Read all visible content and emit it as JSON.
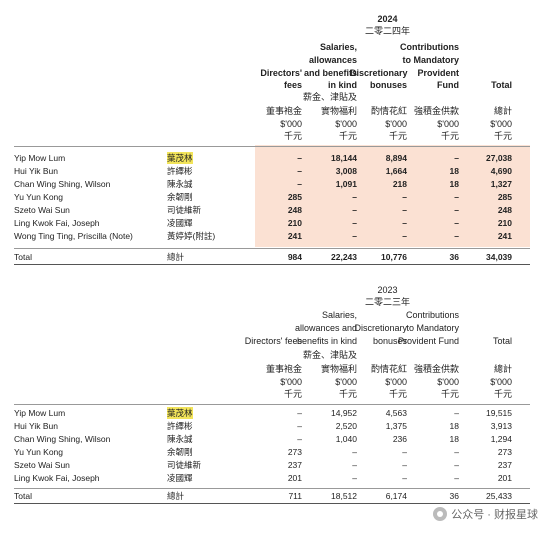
{
  "table2024": {
    "year": "2024",
    "year_zh": "二零二四年",
    "headers": [
      {
        "en": [
          "Directors'",
          "fees"
        ],
        "zh": "董事袍金"
      },
      {
        "en": [
          "Salaries,",
          "allowances",
          "and benefits",
          "in kind"
        ],
        "zh": [
          "薪金、津貼及",
          "實物福利"
        ]
      },
      {
        "en": [
          "Discretionary",
          "bonuses"
        ],
        "zh": "酌情花紅"
      },
      {
        "en": [
          "Contributions",
          "to Mandatory",
          "Provident",
          "Fund"
        ],
        "zh": "強積金供款"
      },
      {
        "en": [
          "Total"
        ],
        "zh": "總計"
      }
    ],
    "unit": "$'000",
    "unit_zh": "千元",
    "rows": [
      {
        "en": "Yip Mow Lum",
        "zh": "葉茂林",
        "highlight": true,
        "v": [
          "–",
          "18,144",
          "8,894",
          "–",
          "27,038"
        ]
      },
      {
        "en": "Hui Yik Bun",
        "zh": "許繹彬",
        "v": [
          "–",
          "3,008",
          "1,664",
          "18",
          "4,690"
        ]
      },
      {
        "en": "Chan Wing Shing, Wilson",
        "zh": "陳永誠",
        "v": [
          "–",
          "1,091",
          "218",
          "18",
          "1,327"
        ]
      },
      {
        "en": "Yu Yun Kong",
        "zh": "余韌剛",
        "v": [
          "285",
          "–",
          "–",
          "–",
          "285"
        ]
      },
      {
        "en": "Szeto Wai Sun",
        "zh": "司徒維新",
        "v": [
          "248",
          "–",
          "–",
          "–",
          "248"
        ]
      },
      {
        "en": "Ling Kwok Fai, Joseph",
        "zh": "凌國輝",
        "v": [
          "210",
          "–",
          "–",
          "–",
          "210"
        ]
      },
      {
        "en": "Wong Ting Ting, Priscilla (Note)",
        "zh": "黃婷婷(附註)",
        "v": [
          "241",
          "–",
          "–",
          "–",
          "241"
        ]
      }
    ],
    "total": {
      "en": "Total",
      "zh": "總計",
      "v": [
        "984",
        "22,243",
        "10,776",
        "36",
        "34,039"
      ]
    }
  },
  "table2023": {
    "year": "2023",
    "year_zh": "二零二三年",
    "headers": [
      {
        "en": [
          "Directors' fees"
        ],
        "zh": "董事袍金"
      },
      {
        "en": [
          "Salaries,",
          "allowances and",
          "benefits in kind"
        ],
        "zh": [
          "薪金、津貼及",
          "實物福利"
        ]
      },
      {
        "en": [
          "Discretionary",
          "bonuses"
        ],
        "zh": "酌情花紅"
      },
      {
        "en": [
          "Contributions",
          "to Mandatory",
          "Provident Fund"
        ],
        "zh": "強積金供款"
      },
      {
        "en": [
          "Total"
        ],
        "zh": "總計"
      }
    ],
    "unit": "$'000",
    "unit_zh": "千元",
    "rows": [
      {
        "en": "Yip Mow Lum",
        "zh": "葉茂林",
        "highlight": true,
        "v": [
          "–",
          "14,952",
          "4,563",
          "–",
          "19,515"
        ]
      },
      {
        "en": "Hui Yik Bun",
        "zh": "許繹彬",
        "v": [
          "–",
          "2,520",
          "1,375",
          "18",
          "3,913"
        ]
      },
      {
        "en": "Chan Wing Shing, Wilson",
        "zh": "陳永誠",
        "v": [
          "–",
          "1,040",
          "236",
          "18",
          "1,294"
        ]
      },
      {
        "en": "Yu Yun Kong",
        "zh": "余韌剛",
        "v": [
          "273",
          "–",
          "–",
          "–",
          "273"
        ]
      },
      {
        "en": "Szeto Wai Sun",
        "zh": "司徒維新",
        "v": [
          "237",
          "–",
          "–",
          "–",
          "237"
        ]
      },
      {
        "en": "Ling Kwok Fai, Joseph",
        "zh": "凌國輝",
        "v": [
          "201",
          "–",
          "–",
          "–",
          "201"
        ]
      }
    ],
    "total": {
      "en": "Total",
      "zh": "總計",
      "v": [
        "711",
        "18,512",
        "6,174",
        "36",
        "25,433"
      ]
    }
  },
  "watermark": {
    "text": "公众号 · 财报星球",
    "icon": "wechat-icon"
  },
  "colors": {
    "shade": "#fbe1d3",
    "highlight": "#f2e45a"
  }
}
